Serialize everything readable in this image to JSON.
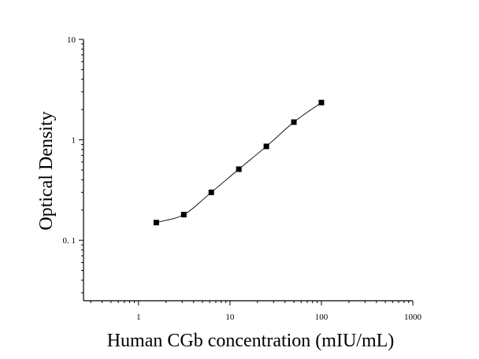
{
  "chart_data": {
    "type": "scatter",
    "xlabel": "Human CGb concentration (mIU/mL)",
    "ylabel": "Optical Density",
    "x_scale": "log",
    "y_scale": "log",
    "xlim": [
      0.25,
      1000
    ],
    "ylim": [
      0.025,
      10
    ],
    "x_ticks": [
      {
        "value": 1,
        "label": "1"
      },
      {
        "value": 10,
        "label": "10"
      },
      {
        "value": 100,
        "label": "100"
      },
      {
        "value": 1000,
        "label": "1000"
      }
    ],
    "y_ticks": [
      {
        "value": 0.1,
        "label": "0. 1"
      },
      {
        "value": 1,
        "label": "1"
      },
      {
        "value": 10,
        "label": "10"
      }
    ],
    "grid": false,
    "marker": "square",
    "fit_line": true,
    "points": [
      {
        "x": 1.5625,
        "y": 0.15
      },
      {
        "x": 3.125,
        "y": 0.18
      },
      {
        "x": 6.25,
        "y": 0.3
      },
      {
        "x": 12.5,
        "y": 0.51
      },
      {
        "x": 25,
        "y": 0.86
      },
      {
        "x": 50,
        "y": 1.5
      },
      {
        "x": 100,
        "y": 2.35
      }
    ]
  }
}
